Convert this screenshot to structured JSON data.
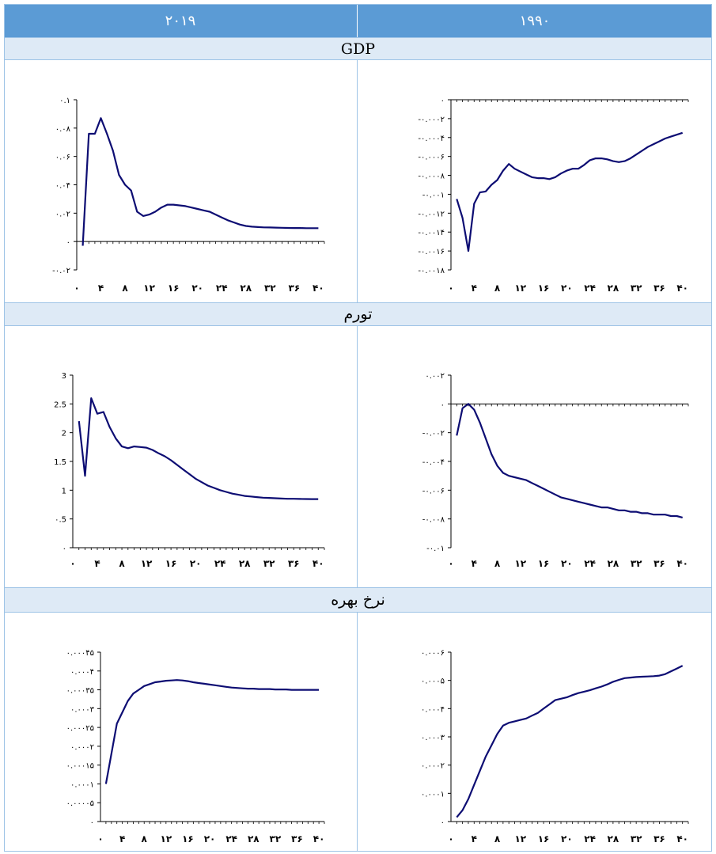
{
  "table": {
    "col_left": "۲۰۱۹",
    "col_right": "۱۹۹۰",
    "sections": [
      "GDP",
      "تورم",
      "نرخ بهره"
    ]
  },
  "colors": {
    "line": "#0d0d73",
    "header": "#5b9bd5",
    "section": "#deeaf6",
    "border": "#9dc3e6"
  },
  "x_ticks": [
    "۰",
    "۴",
    "۸",
    "۱۲",
    "۱۶",
    "۲۰",
    "۲۴",
    "۲۸",
    "۳۲",
    "۳۶",
    "۴۰"
  ],
  "chart_data": [
    {
      "id": "gdp-2019",
      "type": "line",
      "title": "",
      "xlabel": "",
      "ylabel": "",
      "ylim": [
        -0.02,
        0.1
      ],
      "yticks": [
        -0.02,
        0,
        0.02,
        0.04,
        0.06,
        0.08,
        0.1
      ],
      "ytick_labels": [
        "-۰.۰۲",
        "۰",
        "۰.۰۲",
        "۰.۰۴",
        "۰.۰۶",
        "۰.۰۸",
        "۰.۱"
      ],
      "x": [
        1,
        2,
        3,
        4,
        5,
        6,
        7,
        8,
        9,
        10,
        11,
        12,
        13,
        14,
        15,
        16,
        17,
        18,
        19,
        20,
        21,
        22,
        23,
        24,
        25,
        26,
        27,
        28,
        29,
        30,
        31,
        32,
        33,
        34,
        35,
        36,
        37,
        38,
        39,
        40
      ],
      "values": [
        -0.003,
        0.076,
        0.076,
        0.087,
        0.076,
        0.064,
        0.047,
        0.04,
        0.036,
        0.021,
        0.018,
        0.019,
        0.021,
        0.024,
        0.026,
        0.026,
        0.0255,
        0.025,
        0.024,
        0.023,
        0.022,
        0.021,
        0.019,
        0.017,
        0.015,
        0.0135,
        0.012,
        0.011,
        0.0105,
        0.0102,
        0.01,
        0.0099,
        0.0098,
        0.0097,
        0.0096,
        0.0095,
        0.0095,
        0.0094,
        0.0094,
        0.0094
      ]
    },
    {
      "id": "gdp-1990",
      "type": "line",
      "title": "",
      "xlabel": "",
      "ylabel": "",
      "ylim": [
        -0.0018,
        0
      ],
      "yticks": [
        -0.0018,
        -0.0016,
        -0.0014,
        -0.0012,
        -0.001,
        -0.0008,
        -0.0006,
        -0.0004,
        -0.0002,
        0
      ],
      "ytick_labels": [
        "-۰.۰۰۱۸",
        "-۰.۰۰۱۶",
        "-۰.۰۰۱۴",
        "-۰.۰۰۱۲",
        "-۰.۰۰۱",
        "-۰.۰۰۰۸",
        "-۰.۰۰۰۶",
        "-۰.۰۰۰۴",
        "-۰.۰۰۰۲",
        "۰"
      ],
      "x": [
        1,
        2,
        3,
        4,
        5,
        6,
        7,
        8,
        9,
        10,
        11,
        12,
        13,
        14,
        15,
        16,
        17,
        18,
        19,
        20,
        21,
        22,
        23,
        24,
        25,
        26,
        27,
        28,
        29,
        30,
        31,
        32,
        33,
        34,
        35,
        36,
        37,
        38,
        39,
        40
      ],
      "values": [
        -0.00105,
        -0.00125,
        -0.0016,
        -0.0011,
        -0.00098,
        -0.00097,
        -0.0009,
        -0.00085,
        -0.00075,
        -0.00068,
        -0.00073,
        -0.00076,
        -0.00079,
        -0.00082,
        -0.00083,
        -0.00083,
        -0.00084,
        -0.00082,
        -0.00078,
        -0.00075,
        -0.00073,
        -0.00073,
        -0.00069,
        -0.00064,
        -0.00062,
        -0.00062,
        -0.00063,
        -0.00065,
        -0.00066,
        -0.00065,
        -0.00062,
        -0.00058,
        -0.00054,
        -0.0005,
        -0.00047,
        -0.00044,
        -0.00041,
        -0.00039,
        -0.00037,
        -0.00035
      ]
    },
    {
      "id": "inf-2019",
      "type": "line",
      "title": "",
      "xlabel": "",
      "ylabel": "",
      "ylim": [
        0,
        3
      ],
      "yticks": [
        0,
        0.5,
        1,
        1.5,
        2,
        2.5,
        3
      ],
      "ytick_labels": [
        "۰",
        "۰.5",
        "1",
        "1.5",
        "2",
        "2.5",
        "3"
      ],
      "x": [
        1,
        2,
        3,
        4,
        5,
        6,
        7,
        8,
        9,
        10,
        11,
        12,
        13,
        14,
        15,
        16,
        17,
        18,
        19,
        20,
        21,
        22,
        23,
        24,
        25,
        26,
        27,
        28,
        29,
        30,
        31,
        32,
        33,
        34,
        35,
        36,
        37,
        38,
        39,
        40
      ],
      "values": [
        2.2,
        1.25,
        2.6,
        2.33,
        2.36,
        2.1,
        1.9,
        1.76,
        1.73,
        1.76,
        1.75,
        1.74,
        1.7,
        1.64,
        1.59,
        1.52,
        1.44,
        1.36,
        1.28,
        1.2,
        1.14,
        1.08,
        1.04,
        1.0,
        0.97,
        0.94,
        0.92,
        0.9,
        0.89,
        0.88,
        0.87,
        0.865,
        0.86,
        0.855,
        0.85,
        0.85,
        0.848,
        0.847,
        0.845,
        0.845
      ]
    },
    {
      "id": "inf-1990",
      "type": "line",
      "title": "",
      "xlabel": "",
      "ylabel": "",
      "ylim": [
        -0.01,
        0.002
      ],
      "yticks": [
        -0.01,
        -0.008,
        -0.006,
        -0.004,
        -0.002,
        0,
        0.002
      ],
      "ytick_labels": [
        "-۰.۰۱",
        "-۰.۰۰۸",
        "-۰.۰۰۶",
        "-۰.۰۰۴",
        "-۰.۰۰۲",
        "۰",
        "۰.۰۰۲"
      ],
      "x": [
        1,
        2,
        3,
        4,
        5,
        6,
        7,
        8,
        9,
        10,
        11,
        12,
        13,
        14,
        15,
        16,
        17,
        18,
        19,
        20,
        21,
        22,
        23,
        24,
        25,
        26,
        27,
        28,
        29,
        30,
        31,
        32,
        33,
        34,
        35,
        36,
        37,
        38,
        39,
        40
      ],
      "values": [
        -0.0022,
        -0.0003,
        0.0,
        -0.0004,
        -0.0013,
        -0.0024,
        -0.0035,
        -0.0043,
        -0.0048,
        -0.005,
        -0.0051,
        -0.0052,
        -0.0053,
        -0.0055,
        -0.0057,
        -0.0059,
        -0.0061,
        -0.0063,
        -0.0065,
        -0.0066,
        -0.0067,
        -0.0068,
        -0.0069,
        -0.007,
        -0.0071,
        -0.0072,
        -0.0072,
        -0.0073,
        -0.0074,
        -0.0074,
        -0.0075,
        -0.0075,
        -0.0076,
        -0.0076,
        -0.0077,
        -0.0077,
        -0.0077,
        -0.0078,
        -0.0078,
        -0.0079
      ]
    },
    {
      "id": "int-2019",
      "type": "line",
      "title": "",
      "xlabel": "",
      "ylabel": "",
      "ylim": [
        0,
        0.00045
      ],
      "yticks": [
        0,
        5e-05,
        0.0001,
        0.00015,
        0.0002,
        0.00025,
        0.0003,
        0.00035,
        0.0004,
        0.00045
      ],
      "ytick_labels": [
        "۰",
        "۰.۰۰۰۰۵",
        "۰.۰۰۰۱",
        "۰.۰۰۰۱۵",
        "۰.۰۰۰۲",
        "۰.۰۰۰۲۵",
        "۰.۰۰۰۳",
        "۰.۰۰۰۳۵",
        "۰.۰۰۰۴",
        "۰.۰۰۰۴۵"
      ],
      "x": [
        1,
        2,
        3,
        4,
        5,
        6,
        7,
        8,
        9,
        10,
        11,
        12,
        13,
        14,
        15,
        16,
        17,
        18,
        19,
        20,
        21,
        22,
        23,
        24,
        25,
        26,
        27,
        28,
        29,
        30,
        31,
        32,
        33,
        34,
        35,
        36,
        37,
        38,
        39,
        40
      ],
      "values": [
        0.0001,
        0.00018,
        0.00026,
        0.00029,
        0.00032,
        0.00034,
        0.00035,
        0.00036,
        0.000365,
        0.00037,
        0.000372,
        0.000374,
        0.000375,
        0.000376,
        0.000375,
        0.000373,
        0.00037,
        0.000368,
        0.000366,
        0.000364,
        0.000362,
        0.00036,
        0.000358,
        0.000356,
        0.000355,
        0.000354,
        0.000353,
        0.000353,
        0.000352,
        0.000352,
        0.000352,
        0.000351,
        0.000351,
        0.000351,
        0.00035,
        0.00035,
        0.00035,
        0.00035,
        0.00035,
        0.00035
      ]
    },
    {
      "id": "int-1990",
      "type": "line",
      "title": "",
      "xlabel": "",
      "ylabel": "",
      "ylim": [
        0,
        0.0006
      ],
      "yticks": [
        0,
        0.0001,
        0.0002,
        0.0003,
        0.0004,
        0.0005,
        0.0006
      ],
      "ytick_labels": [
        "۰",
        "۰.۰۰۰۱",
        "۰.۰۰۰۲",
        "۰.۰۰۰۳",
        "۰.۰۰۰۴",
        "۰.۰۰۰۵",
        "۰.۰۰۰۶"
      ],
      "x": [
        1,
        2,
        3,
        4,
        5,
        6,
        7,
        8,
        9,
        10,
        11,
        12,
        13,
        14,
        15,
        16,
        17,
        18,
        19,
        20,
        21,
        22,
        23,
        24,
        25,
        26,
        27,
        28,
        29,
        30,
        31,
        32,
        33,
        34,
        35,
        36,
        37,
        38,
        39,
        40
      ],
      "values": [
        1.5e-05,
        4e-05,
        8e-05,
        0.00013,
        0.00018,
        0.00023,
        0.00027,
        0.00031,
        0.00034,
        0.00035,
        0.000355,
        0.00036,
        0.000365,
        0.000375,
        0.000385,
        0.0004,
        0.000415,
        0.00043,
        0.000435,
        0.00044,
        0.000448,
        0.000455,
        0.00046,
        0.000465,
        0.000472,
        0.000478,
        0.000486,
        0.000495,
        0.000502,
        0.000508,
        0.00051,
        0.000512,
        0.000513,
        0.000514,
        0.000515,
        0.000517,
        0.000522,
        0.000532,
        0.000542,
        0.000552
      ]
    }
  ]
}
